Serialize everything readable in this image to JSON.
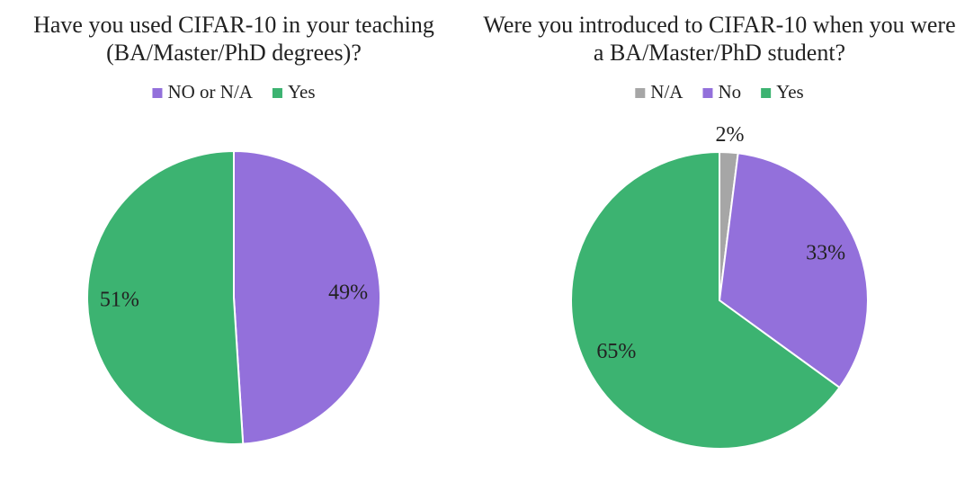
{
  "chart_data": [
    {
      "type": "pie",
      "title": "Have you used CIFAR-10 in your teaching (BA/Master/PhD degrees)?",
      "categories": [
        "NO or N/A",
        "Yes"
      ],
      "values": [
        49,
        51
      ],
      "value_labels": [
        "49%",
        "51%"
      ],
      "colors": [
        "#9370db",
        "#3cb371"
      ]
    },
    {
      "type": "pie",
      "title": "Were you introduced to CIFAR-10 when you were a BA/Master/PhD student?",
      "categories": [
        "N/A",
        "No",
        "Yes"
      ],
      "values": [
        2,
        33,
        65
      ],
      "value_labels": [
        "2%",
        "33%",
        "65%"
      ],
      "colors": [
        "#a6a6a6",
        "#9370db",
        "#3cb371"
      ]
    }
  ]
}
